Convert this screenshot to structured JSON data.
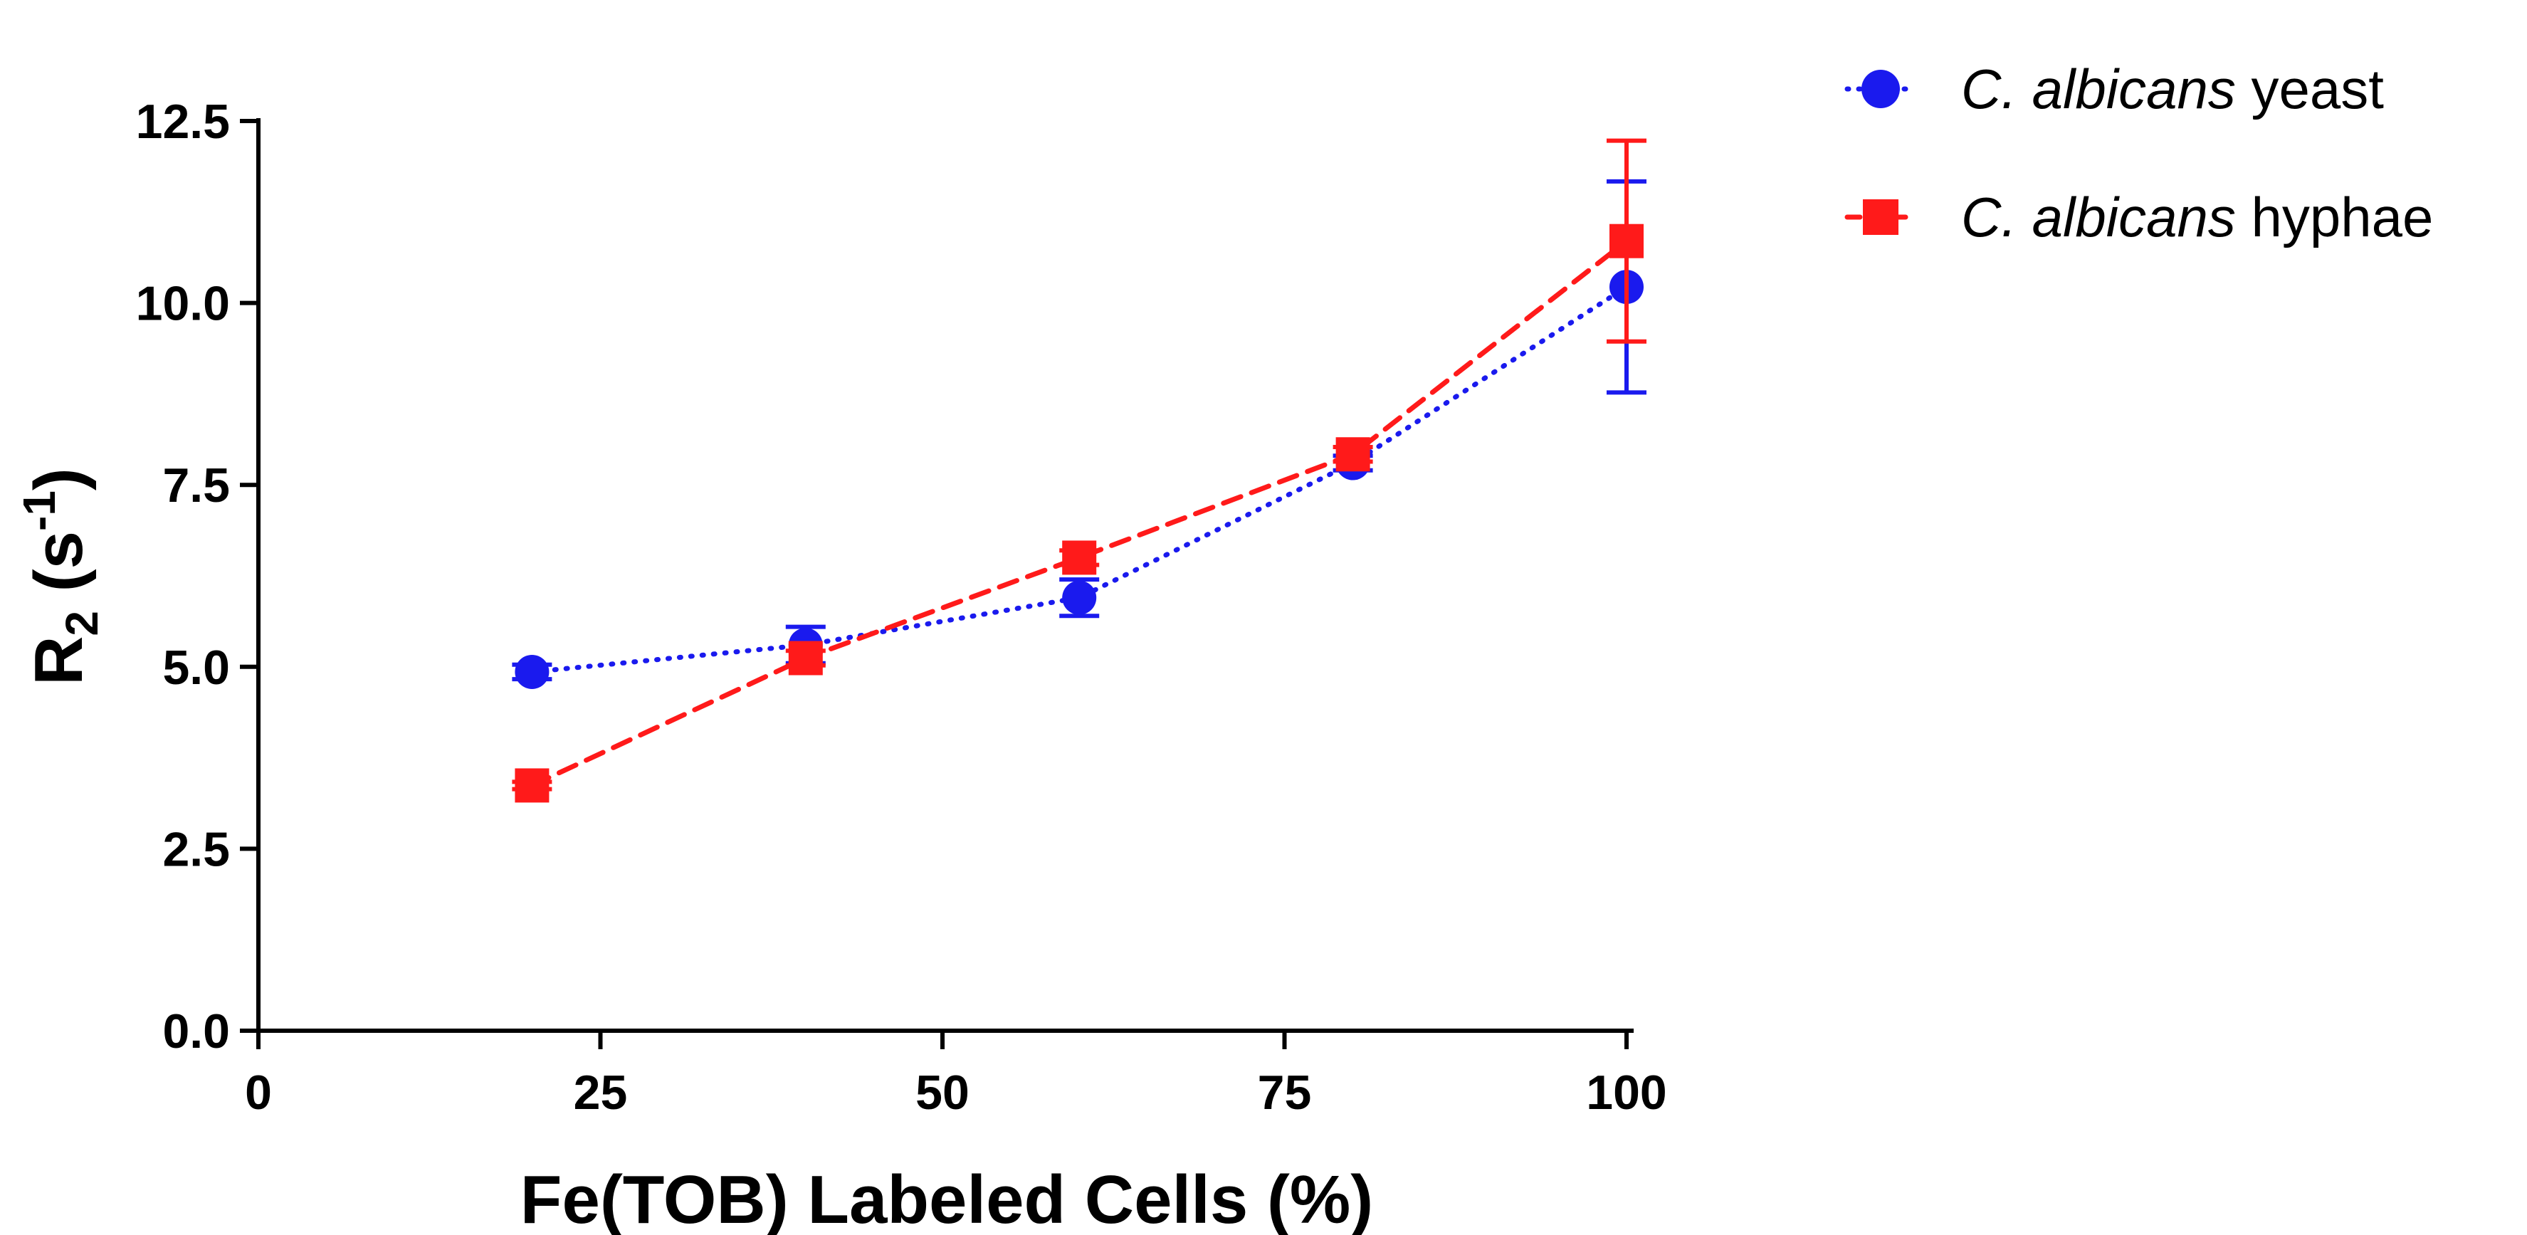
{
  "chart_data": {
    "type": "line",
    "title": "",
    "xlabel": "Fe(TOB) Labeled Cells (%)",
    "ylabel": {
      "base": "R",
      "sub": "2",
      "open": " (s",
      "sup": "-1",
      "close": ")"
    },
    "xlim": [
      0,
      100
    ],
    "ylim": [
      0,
      12.5
    ],
    "xticks": [
      0,
      25,
      50,
      75,
      100
    ],
    "xtick_labels": [
      "0",
      "25",
      "50",
      "75",
      "100"
    ],
    "yticks": [
      0,
      2.5,
      5,
      7.5,
      10,
      12.5
    ],
    "ytick_labels": [
      "0.0",
      "2.5",
      "5.0",
      "7.5",
      "10.0",
      "12.5"
    ],
    "grid": false,
    "legend_position": "top-right",
    "series": [
      {
        "name": "C. albicans yeast",
        "name_italic": "C. albicans",
        "name_rest": " yeast",
        "color": "#1a1aee",
        "marker": "circle",
        "line_style": "dotted",
        "x": [
          20,
          40,
          60,
          80,
          100
        ],
        "y": [
          4.93,
          5.3,
          5.95,
          7.8,
          10.22
        ],
        "err": [
          0.1,
          0.25,
          0.25,
          0.1,
          1.45
        ]
      },
      {
        "name": "C. albicans hyphae",
        "name_italic": "C. albicans",
        "name_rest": " hyphae",
        "color": "#ff1a1a",
        "marker": "square",
        "line_style": "dashed",
        "x": [
          20,
          40,
          60,
          80,
          100
        ],
        "y": [
          3.37,
          5.12,
          6.5,
          7.92,
          10.85
        ],
        "err": [
          0.05,
          0.1,
          0.1,
          0.1,
          1.38
        ]
      }
    ]
  }
}
